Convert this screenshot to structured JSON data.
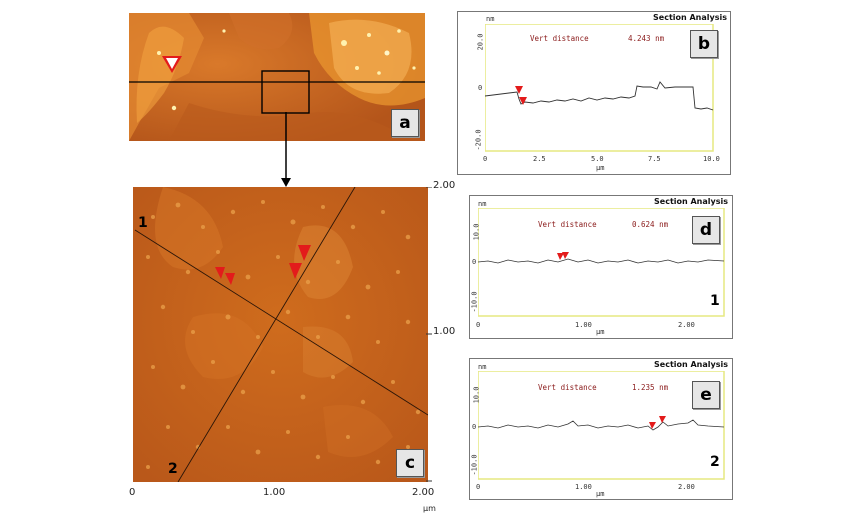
{
  "panels": {
    "a": {
      "label": "a"
    },
    "c": {
      "label": "c",
      "line_labels": [
        "1",
        "2"
      ],
      "x_ticks": [
        "0",
        "1.00",
        "2.00"
      ],
      "y_ticks": [
        "2.00",
        "1.00"
      ],
      "unit": "µm"
    },
    "b": {
      "label": "b",
      "title": "Section Analysis",
      "unit_y": "nm",
      "unit_x": "µm",
      "vert_label": "Vert distance",
      "vert_value": "4.243 nm",
      "y_ticks": [
        "20.0",
        "0",
        "-20.0"
      ],
      "x_ticks": [
        "0",
        "2.5",
        "5.0",
        "7.5",
        "10.0"
      ]
    },
    "d": {
      "label": "d",
      "title": "Section Analysis",
      "unit_y": "nm",
      "unit_x": "µm",
      "vert_label": "Vert distance",
      "vert_value": "0.624 nm",
      "y_ticks": [
        "10.0",
        "0",
        "-10.0"
      ],
      "x_ticks": [
        "0",
        "1.00",
        "2.00"
      ],
      "line_id": "1"
    },
    "e": {
      "label": "e",
      "title": "Section Analysis",
      "unit_y": "nm",
      "unit_x": "µm",
      "vert_label": "Vert distance",
      "vert_value": "1.235 nm",
      "y_ticks": [
        "10.0",
        "0",
        "-10.0"
      ],
      "x_ticks": [
        "0",
        "1.00",
        "2.00"
      ],
      "line_id": "2"
    }
  },
  "colors": {
    "afm_base": "#c7661a",
    "afm_light": "#f0c070",
    "marker": "#e31b1b",
    "plot_frame": "#e6e880"
  }
}
